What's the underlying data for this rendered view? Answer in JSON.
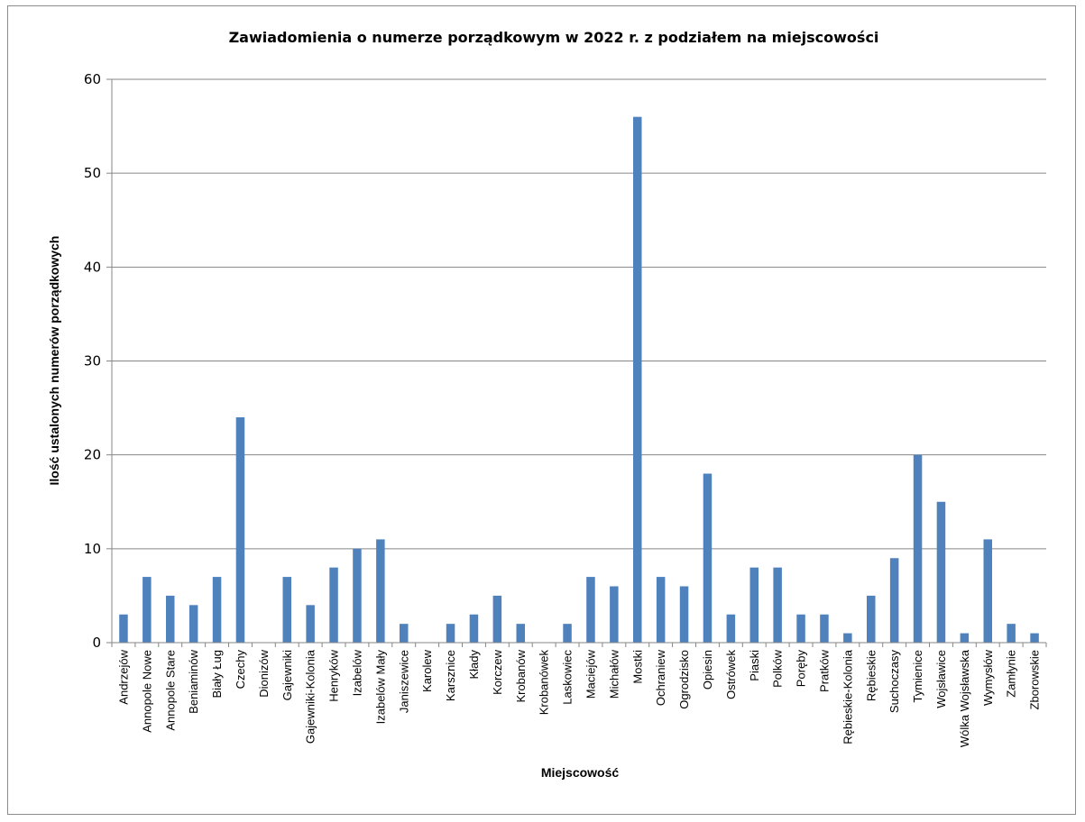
{
  "chart_data": {
    "type": "bar",
    "title": "Zawiadomienia o numerze porządkowym  w 2022 r. z podziałem na miejscowości",
    "xlabel": "Miejscowość",
    "ylabel": "Ilość ustalonych numerów porządkowych",
    "ylim": [
      0,
      60
    ],
    "yticks": [
      0,
      10,
      20,
      30,
      40,
      50,
      60
    ],
    "grid": true,
    "legend": "none",
    "bar_color": "#4f81bd",
    "categories": [
      "Andrzejów",
      "Annopole Nowe",
      "Annopole Stare",
      "Beniaminów",
      "Biały Ług",
      "Czechy",
      "Dionizów",
      "Gajewniki",
      "Gajewniki-Kolonia",
      "Henryków",
      "Izabelów",
      "Izabelów Mały",
      "Janiszewice",
      "Karolew",
      "Karsznice",
      "Kłady",
      "Korczew",
      "Krobanów",
      "Krobanówek",
      "Laskowiec",
      "Maciejów",
      "Michałów",
      "Mostki",
      "Ochraniew",
      "Ogrodzisko",
      "Opiesin",
      "Ostrówek",
      "Piaski",
      "Polków",
      "Poręby",
      "Pratków",
      "Rębieskie-Kolonia",
      "Rębieskie",
      "Suchoczasy",
      "Tymienice",
      "Wojsławice",
      "Wólka Wojsławska",
      "Wymysłów",
      "Zamłynie",
      "Zborowskie"
    ],
    "values": [
      3,
      7,
      5,
      4,
      7,
      24,
      0,
      7,
      4,
      8,
      10,
      11,
      2,
      0,
      2,
      3,
      5,
      2,
      0,
      2,
      7,
      6,
      56,
      7,
      6,
      18,
      3,
      8,
      8,
      3,
      3,
      1,
      5,
      9,
      20,
      15,
      1,
      11,
      2,
      1
    ]
  }
}
